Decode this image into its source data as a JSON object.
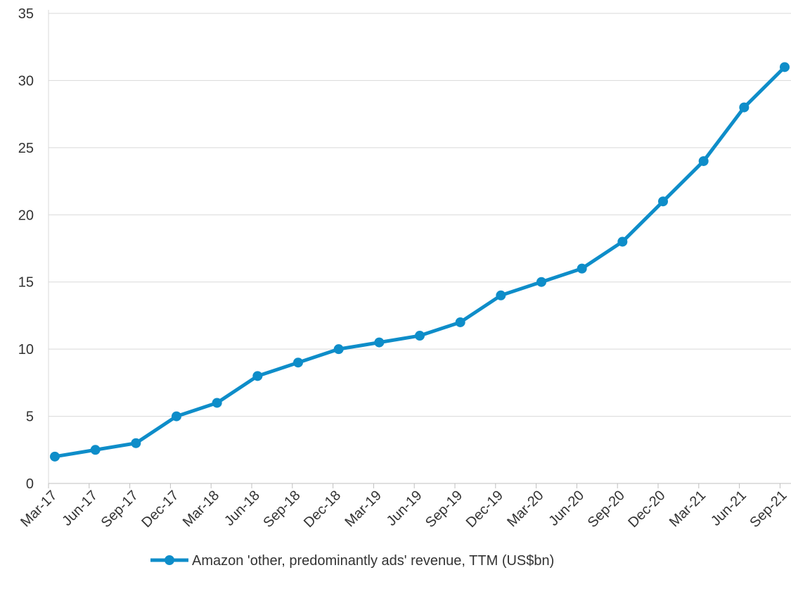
{
  "chart_data": {
    "type": "line",
    "title": "",
    "xlabel": "",
    "ylabel": "",
    "categories": [
      "Mar-17",
      "Jun-17",
      "Sep-17",
      "Dec-17",
      "Mar-18",
      "Jun-18",
      "Sep-18",
      "Dec-18",
      "Mar-19",
      "Jun-19",
      "Sep-19",
      "Dec-19",
      "Mar-20",
      "Jun-20",
      "Sep-20",
      "Dec-20",
      "Mar-21",
      "Jun-21",
      "Sep-21"
    ],
    "series": [
      {
        "name": "Amazon 'other, predominantly ads' revenue, TTM (US$bn)",
        "values": [
          2,
          2.5,
          3,
          5,
          6,
          8,
          9,
          10,
          10.5,
          11,
          12,
          14,
          15,
          16,
          18,
          21,
          24,
          28,
          31
        ],
        "color": "#0e8dc9"
      }
    ],
    "ylim": [
      0,
      35
    ],
    "yticks": [
      0,
      5,
      10,
      15,
      20,
      25,
      30,
      35
    ],
    "grid": true,
    "legend_position": "bottom"
  }
}
